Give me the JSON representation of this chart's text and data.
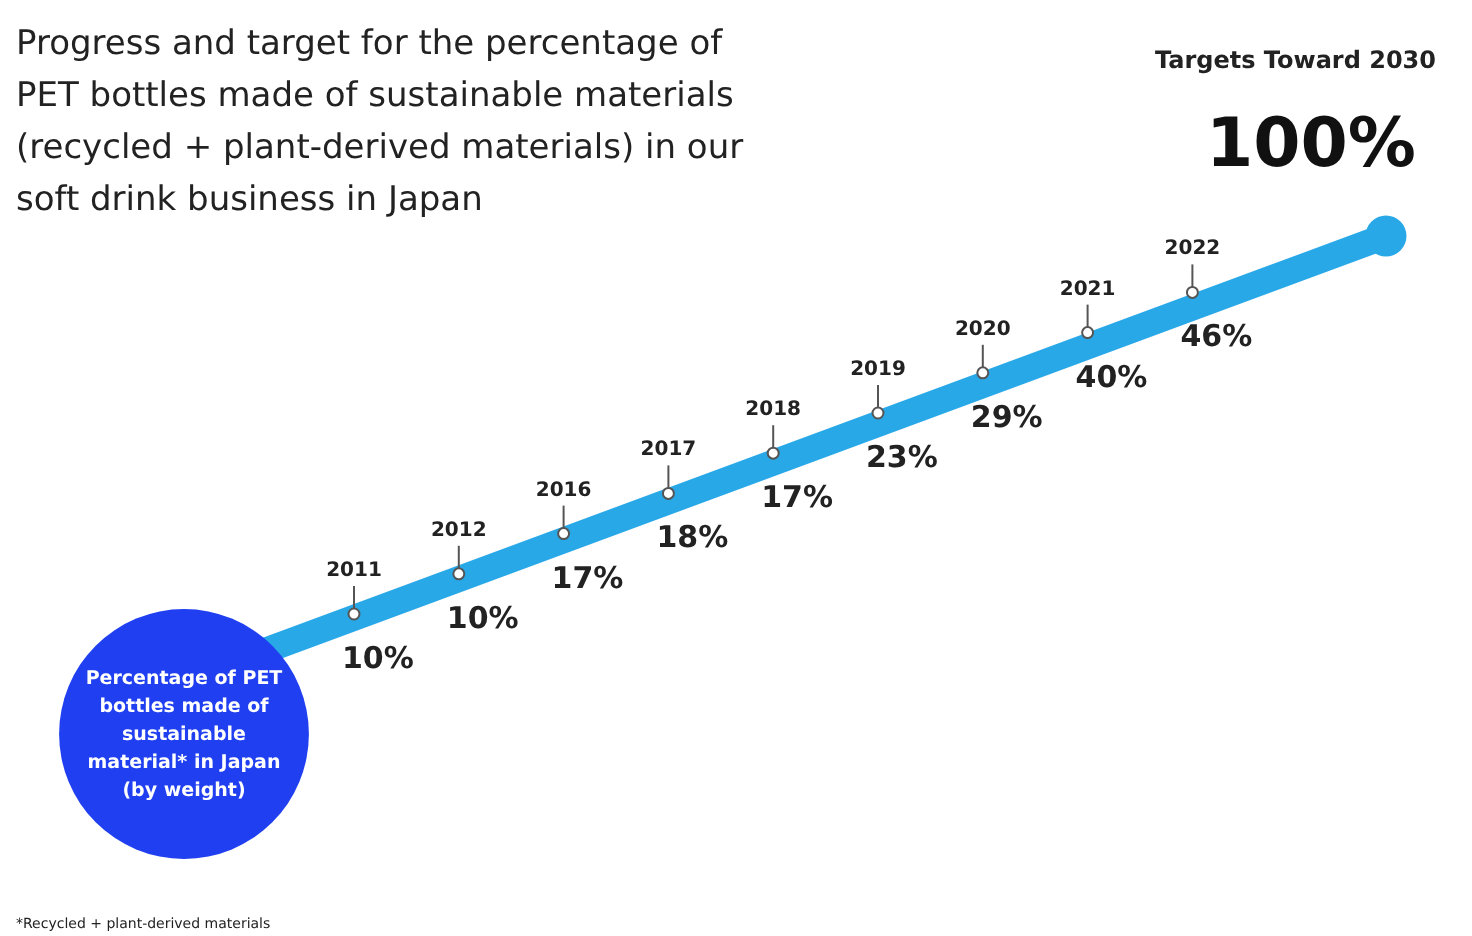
{
  "chart_data": {
    "type": "other",
    "title": "Progress  and target for the percentage of PET bottles made of sustainable materials (recycled + plant-derived materials) in our soft drink business in Japan",
    "categories": [
      "2011",
      "2012",
      "2016",
      "2017",
      "2018",
      "2019",
      "2020",
      "2021",
      "2022",
      "Targets Toward 2030"
    ],
    "values": [
      10,
      10,
      17,
      18,
      17,
      23,
      29,
      40,
      46,
      100
    ],
    "value_labels": [
      "10%",
      "10%",
      "17%",
      "18%",
      "17%",
      "23%",
      "29%",
      "40%",
      "46%",
      "100%"
    ],
    "color": "#29a8e8",
    "annotations": [
      "Percentage of PET bottles made of sustainable material* in Japan (by weight)",
      "*Recycled + plant-derived materials"
    ]
  }
}
